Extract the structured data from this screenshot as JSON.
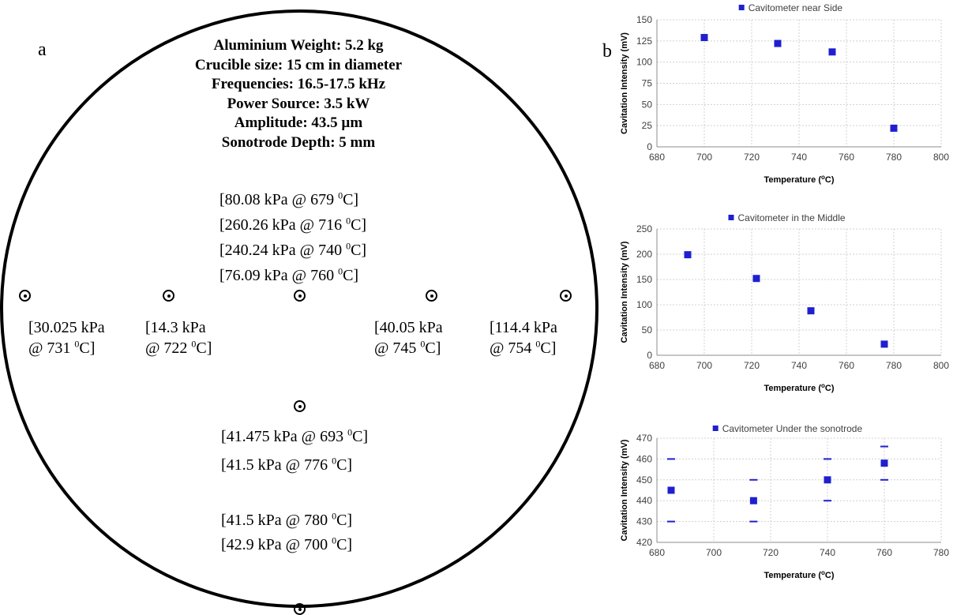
{
  "panel_a": {
    "label": "a",
    "specs": [
      "Aluminium Weight: 5.2 kg",
      "Crucible size: 15 cm in diameter",
      "Frequencies: 16.5-17.5 kHz",
      "Power Source: 3.5 kW",
      "Amplitude: 43.5 µm",
      "Sonotrode Depth: 5 mm"
    ],
    "center_readings": [
      {
        "p": "[80.08 kPa @ 679 ",
        "sup": "0",
        "u": "C]"
      },
      {
        "p": "[260.26 kPa @ 716 ",
        "sup": "0",
        "u": "C]"
      },
      {
        "p": "[240.24 kPa @ 740 ",
        "sup": "0",
        "u": "C]"
      },
      {
        "p": "[76.09 kPa @ 760 ",
        "sup": "0",
        "u": "C]"
      }
    ],
    "side_readings": [
      {
        "l1": "[30.025 kPa",
        "l2": "@ 731 ",
        "sup": "0",
        "u": "C]"
      },
      {
        "l1": "[14.3 kPa",
        "l2": "@ 722 ",
        "sup": "0",
        "u": "C]"
      },
      {
        "l1": "[40.05 kPa",
        "l2": "@ 745 ",
        "sup": "0",
        "u": "C]"
      },
      {
        "l1": "[114.4 kPa",
        "l2": "@ 754 ",
        "sup": "0",
        "u": "C]"
      }
    ],
    "lower_readings": [
      {
        "p": "[41.475 kPa @ 693 ",
        "sup": "0",
        "u": "C]"
      },
      {
        "p": "[41.5 kPa @ 776 ",
        "sup": "0",
        "u": "C]"
      }
    ],
    "bottom_readings": [
      {
        "p": "[41.5 kPa @ 780 ",
        "sup": "0",
        "u": "C]"
      },
      {
        "p": "[42.9 kPa @ 700 ",
        "sup": "0",
        "u": "C]"
      }
    ]
  },
  "panel_b": {
    "label": "b"
  },
  "colors": {
    "marker": "#1f1fd0",
    "grid": "#d0d0d0",
    "axis": "#8c8c8c"
  },
  "chart_data": [
    {
      "type": "scatter",
      "legend": "Cavitometer near Side",
      "xlabel": "Temperature (",
      "xlabel_sup": "o",
      "xlabel_end": "C)",
      "ylabel": "Cavitation Intensity (mV)",
      "xlim": [
        680,
        800
      ],
      "ylim": [
        0,
        150
      ],
      "xticks": [
        680,
        700,
        720,
        740,
        760,
        780,
        800
      ],
      "yticks": [
        0,
        25,
        50,
        75,
        100,
        125,
        150
      ],
      "x": [
        700,
        731,
        754,
        780
      ],
      "y": [
        129,
        122,
        112,
        22
      ]
    },
    {
      "type": "scatter",
      "legend": "Cavitometer in the Middle",
      "xlabel": "Temperature (",
      "xlabel_sup": "o",
      "xlabel_end": "C)",
      "ylabel": "Cavitation Intensity (mV)",
      "xlim": [
        680,
        800
      ],
      "ylim": [
        0,
        250
      ],
      "xticks": [
        680,
        700,
        720,
        740,
        760,
        780,
        800
      ],
      "yticks": [
        0,
        50,
        100,
        150,
        200,
        250
      ],
      "x": [
        693,
        722,
        745,
        776
      ],
      "y": [
        199,
        152,
        88,
        22
      ]
    },
    {
      "type": "scatter",
      "legend": "Cavitometer Under the sonotrode",
      "xlabel": "Temperature (",
      "xlabel_sup": "o",
      "xlabel_end": "C)",
      "ylabel": "Cavitation Intensity (mV)",
      "xlim": [
        680,
        780
      ],
      "ylim": [
        420,
        470
      ],
      "xticks": [
        680,
        700,
        720,
        740,
        760,
        780
      ],
      "yticks": [
        420,
        430,
        440,
        450,
        460,
        470
      ],
      "x": [
        685,
        714,
        740,
        760
      ],
      "y": [
        445,
        440,
        450,
        458
      ],
      "error_low": [
        430,
        430,
        440,
        450
      ],
      "error_high": [
        460,
        450,
        460,
        466
      ]
    }
  ]
}
